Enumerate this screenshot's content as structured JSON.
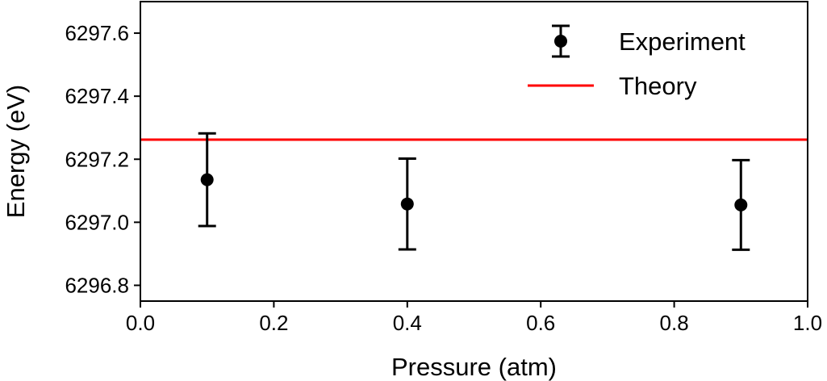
{
  "chart_data": {
    "type": "scatter",
    "title": "",
    "xlabel": "Pressure (atm)",
    "ylabel": "Energy (eV)",
    "xlim": [
      0.0,
      1.0
    ],
    "ylim": [
      6296.75,
      6297.7
    ],
    "x_ticks": [
      0.0,
      0.2,
      0.4,
      0.6,
      0.8,
      1.0
    ],
    "x_tick_labels": [
      "0.0",
      "0.2",
      "0.4",
      "0.6",
      "0.8",
      "1.0"
    ],
    "y_ticks": [
      6296.8,
      6297.0,
      6297.2,
      6297.4,
      6297.6
    ],
    "y_tick_labels": [
      "6296.8",
      "6297.0",
      "6297.2",
      "6297.4",
      "6297.6"
    ],
    "grid": false,
    "legend_position": "top-right",
    "series": [
      {
        "name": "Experiment",
        "kind": "errorbar",
        "color": "#000000",
        "points": [
          {
            "x": 0.1,
            "y": 6297.135,
            "yerr": 0.147
          },
          {
            "x": 0.4,
            "y": 6297.058,
            "yerr": 0.144
          },
          {
            "x": 0.9,
            "y": 6297.055,
            "yerr": 0.142
          }
        ]
      },
      {
        "name": "Theory",
        "kind": "hline",
        "color": "#ff0000",
        "y": 6297.262
      }
    ]
  }
}
